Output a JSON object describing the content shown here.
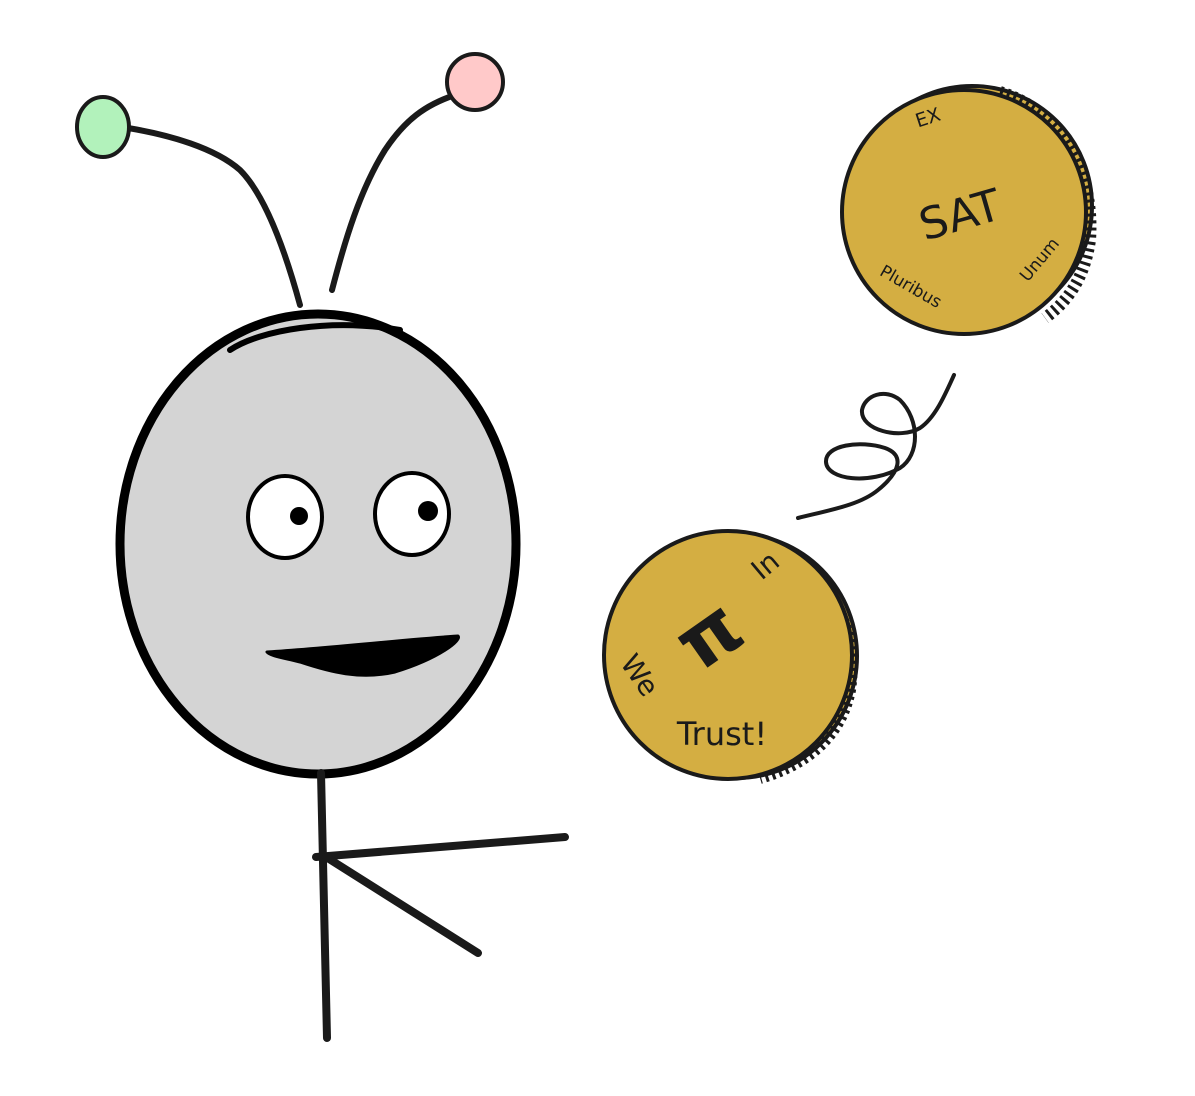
{
  "colors": {
    "background": "#ffffff",
    "stroke": "#1a1a1a",
    "head_fill": "#d4d4d4",
    "left_antenna_tip": "#b2f2bb",
    "right_antenna_tip": "#ffc9c9",
    "coin_fill": "#d4ae42",
    "eye_white": "#ffffff"
  },
  "coin_top": {
    "center_text": "SAT",
    "top_text": "EX",
    "left_text": "Pluribus",
    "right_text": "Unum"
  },
  "coin_bottom": {
    "symbol": "π",
    "top_right_text": "In",
    "left_text": "We",
    "bottom_text": "Trust!"
  }
}
